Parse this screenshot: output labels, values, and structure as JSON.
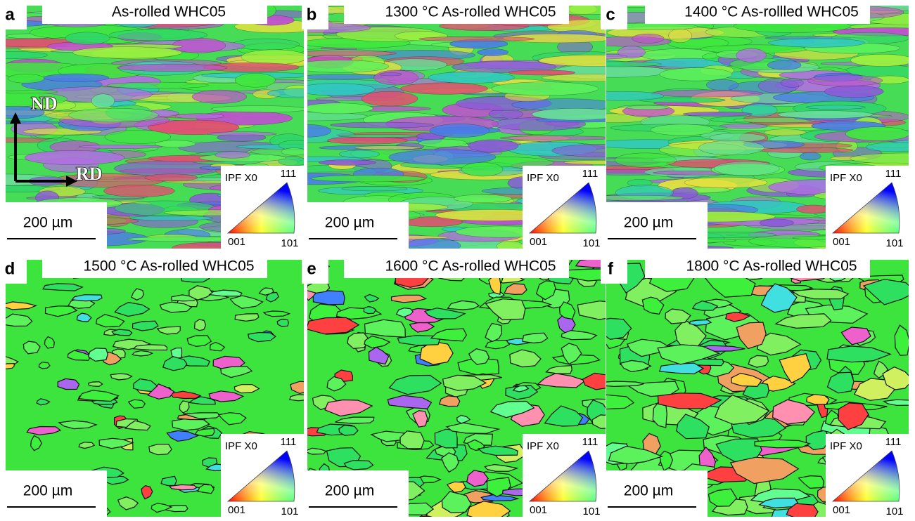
{
  "panels": [
    {
      "letter": "a",
      "title": "As-rolled WHC05",
      "scale_bar": "200 µm",
      "legend": {
        "title": "IPF X0",
        "top": "111",
        "left": "001",
        "right": "101"
      }
    },
    {
      "letter": "b",
      "title": "1300 °C As-rolled WHC05",
      "scale_bar": "200 µm",
      "legend": {
        "title": "IPF X0",
        "top": "111",
        "left": "001",
        "right": "101"
      }
    },
    {
      "letter": "c",
      "title": "1400 °C As-rollled WHC05",
      "scale_bar": "200 µm",
      "legend": {
        "title": "IPF X0",
        "top": "111",
        "left": "001",
        "right": "101"
      }
    },
    {
      "letter": "d",
      "title": "1500 °C As-rolled WHC05",
      "scale_bar": "200 µm",
      "legend": {
        "title": "IPF X0",
        "top": "111",
        "left": "001",
        "right": "101"
      }
    },
    {
      "letter": "e",
      "title": "1600 °C As-rolled WHC05",
      "scale_bar": "200 µm",
      "legend": {
        "title": "IPF X0",
        "top": "111",
        "left": "001",
        "right": "101"
      }
    },
    {
      "letter": "f",
      "title": "1800 °C As-rolled WHC05",
      "scale_bar": "200 µm",
      "legend": {
        "title": "IPF X0",
        "top": "111",
        "left": "001",
        "right": "101"
      }
    }
  ],
  "directions": {
    "vertical": "ND",
    "horizontal": "RD"
  }
}
